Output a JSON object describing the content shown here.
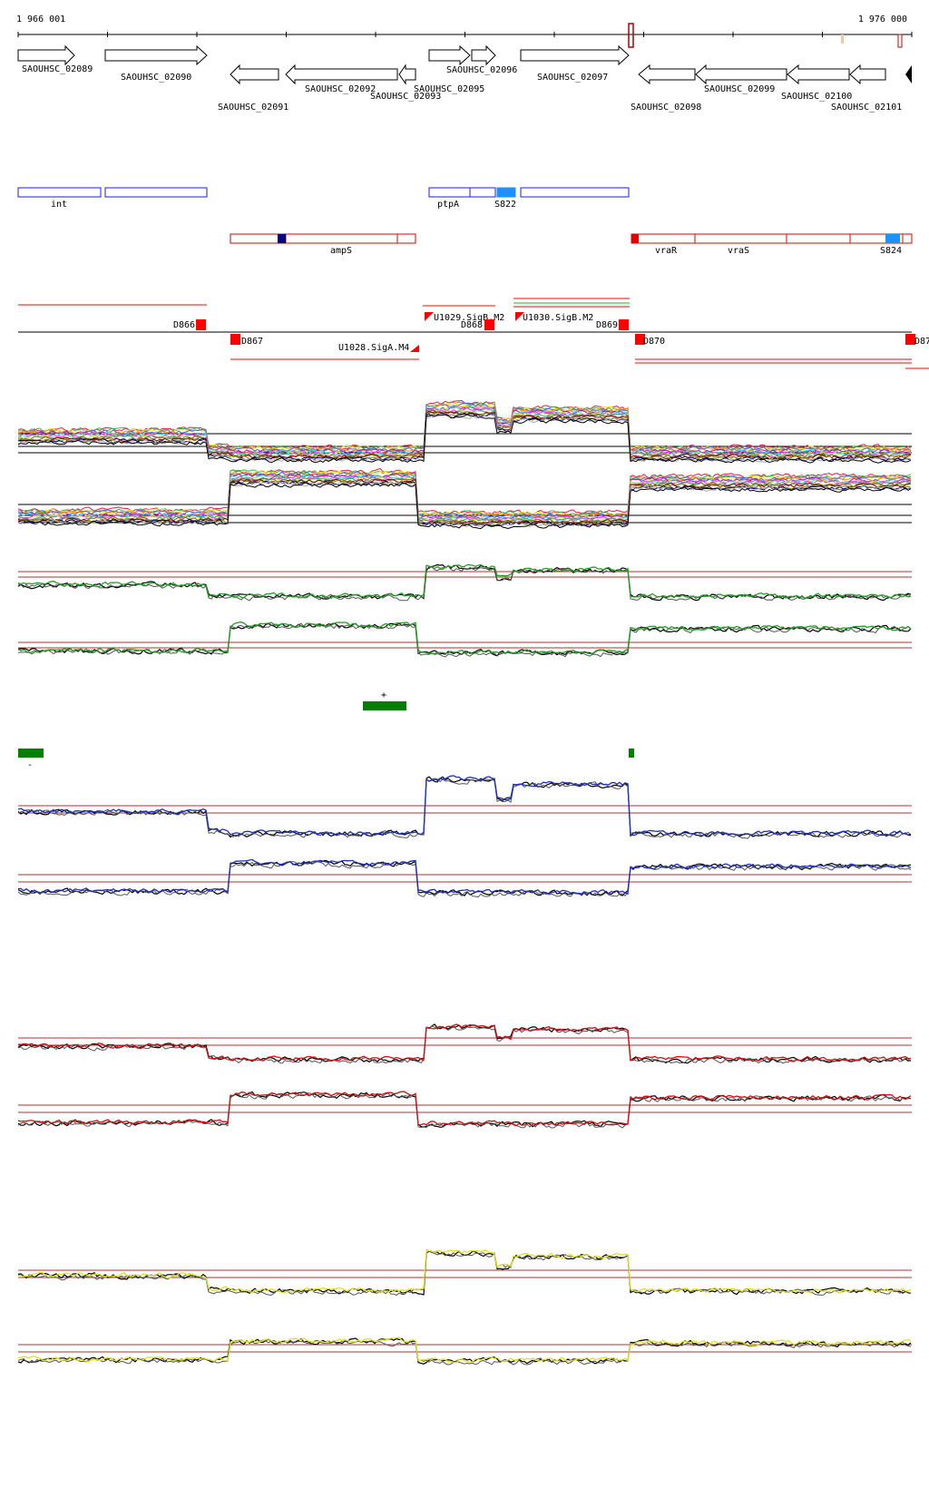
{
  "coords": {
    "start_label": "1 966 001",
    "end_label": "1 976 000"
  },
  "genes": [
    {
      "id": "g2089",
      "label": "SAOUHSC_02089",
      "strand": "+"
    },
    {
      "id": "g2090",
      "label": "SAOUHSC_02090",
      "strand": "+"
    },
    {
      "id": "g2091",
      "label": "SAOUHSC_02091",
      "strand": "-"
    },
    {
      "id": "g2092",
      "label": "SAOUHSC_02092",
      "strand": "-"
    },
    {
      "id": "g2093",
      "label": "SAOUHSC_02093",
      "strand": "-"
    },
    {
      "id": "g2095",
      "label": "SAOUHSC_02095",
      "strand": "+"
    },
    {
      "id": "g2096",
      "label": "SAOUHSC_02096",
      "strand": "+"
    },
    {
      "id": "g2097",
      "label": "SAOUHSC_02097",
      "strand": "+"
    },
    {
      "id": "g2098",
      "label": "SAOUHSC_02098",
      "strand": "-"
    },
    {
      "id": "g2099",
      "label": "SAOUHSC_02099",
      "strand": "-"
    },
    {
      "id": "g2100",
      "label": "SAOUHSC_02100",
      "strand": "-"
    },
    {
      "id": "g2101",
      "label": "SAOUHSC_02101",
      "strand": "-"
    }
  ],
  "plus_features": {
    "color": "#1a1aff",
    "labels": {
      "int": "int",
      "ptpA": "ptpA",
      "S822": "S822"
    },
    "highlight_color": "#1e90ff"
  },
  "minus_features": {
    "color": "#e00000",
    "labels": {
      "ampS": "ampS",
      "vraR": "vraR",
      "vraS": "vraS",
      "S824": "S824"
    },
    "highlight_color": "#1e90ff",
    "dark_mark_color": "#000080"
  },
  "transcription_units": {
    "color": "#ff0000",
    "labels": {
      "D866": "D866",
      "D867": "D867",
      "D868": "D868",
      "D869": "D869",
      "D870": "D870",
      "D871": "D87",
      "U1028": "U1028.SigA.M4",
      "U1029": "U1029.SigB.M2",
      "U1030": "U1030.SigB.M2"
    }
  },
  "segment_markers": {
    "color": "#008000",
    "plus_label": "+",
    "minus_label": "-"
  },
  "expression_panels": [
    {
      "name": "multi-condition-plus",
      "color": "multi"
    },
    {
      "name": "multi-condition-minus",
      "color": "multi"
    },
    {
      "name": "green-plus",
      "color": "#22a022"
    },
    {
      "name": "green-minus",
      "color": "#22a022"
    },
    {
      "name": "blue-plus",
      "color": "#1c2fc0"
    },
    {
      "name": "blue-minus",
      "color": "#1c2fc0"
    },
    {
      "name": "red-plus",
      "color": "#d01010"
    },
    {
      "name": "red-minus",
      "color": "#d01010"
    },
    {
      "name": "yellow-plus",
      "color": "#e0e020"
    },
    {
      "name": "yellow-minus",
      "color": "#e0e020"
    }
  ]
}
